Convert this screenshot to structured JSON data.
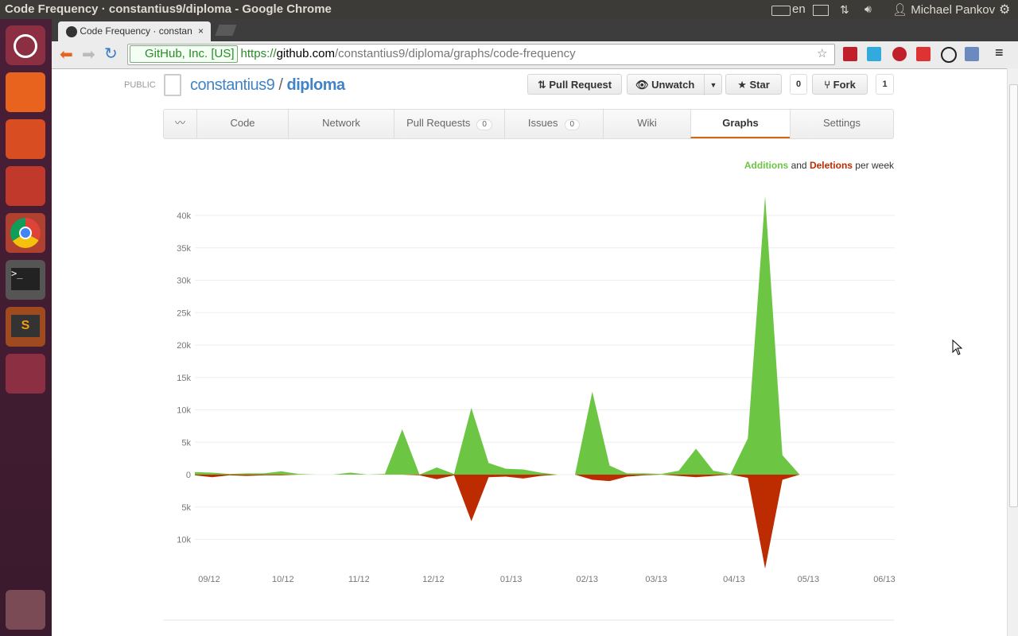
{
  "window_title": "Code Frequency · constantius9/diploma - Google Chrome",
  "topbar": {
    "language": "en",
    "user": "Michael Pankov"
  },
  "browser": {
    "tab_title": "Code Frequency · constan",
    "secure_label": "GitHub, Inc. [US]",
    "url_scheme": "https://",
    "url_host": "github.com",
    "url_path": "/constantius9/diploma/graphs/code-frequency"
  },
  "repo": {
    "visibility": "PUBLIC",
    "owner": "constantius9",
    "separator": "/",
    "name": "diploma",
    "buttons": {
      "pull_request": "Pull Request",
      "unwatch": "Unwatch",
      "star": "Star",
      "star_count": "0",
      "fork": "Fork",
      "fork_count": "1"
    }
  },
  "nav": [
    {
      "label": "Code"
    },
    {
      "label": "Network"
    },
    {
      "label": "Pull Requests",
      "count": "0"
    },
    {
      "label": "Issues",
      "count": "0"
    },
    {
      "label": "Wiki"
    },
    {
      "label": "Graphs"
    },
    {
      "label": "Settings"
    }
  ],
  "chart_data": {
    "type": "area",
    "legend_joiner": "and",
    "legend_suffix": "per week",
    "x": [
      0,
      1,
      2,
      3,
      4,
      5,
      6,
      7,
      8,
      9,
      10,
      11,
      12,
      13,
      14,
      15,
      16,
      17,
      18,
      19,
      20,
      21,
      22,
      23,
      24,
      25,
      26,
      27,
      28,
      29,
      30,
      31,
      32,
      33,
      34,
      35
    ],
    "xlim": [
      0,
      40.5
    ],
    "xticks": [
      {
        "value": 0.83,
        "label": "09/12"
      },
      {
        "value": 5.1,
        "label": "10/12"
      },
      {
        "value": 9.5,
        "label": "11/12"
      },
      {
        "value": 13.8,
        "label": "12/12"
      },
      {
        "value": 18.3,
        "label": "01/13"
      },
      {
        "value": 22.7,
        "label": "02/13"
      },
      {
        "value": 26.7,
        "label": "03/13"
      },
      {
        "value": 31.2,
        "label": "04/13"
      },
      {
        "value": 35.5,
        "label": "05/13"
      },
      {
        "value": 39.9,
        "label": "06/13"
      }
    ],
    "ylim": [
      -15000,
      45000
    ],
    "yticks": [
      {
        "value": 40000,
        "label": "40k"
      },
      {
        "value": 35000,
        "label": "35k"
      },
      {
        "value": 30000,
        "label": "30k"
      },
      {
        "value": 25000,
        "label": "25k"
      },
      {
        "value": 20000,
        "label": "20k"
      },
      {
        "value": 15000,
        "label": "15k"
      },
      {
        "value": 10000,
        "label": "10k"
      },
      {
        "value": 5000,
        "label": "5k"
      },
      0,
      {
        "value": -5000,
        "label": "5k"
      },
      {
        "value": -10000,
        "label": "10k"
      }
    ],
    "grid": true,
    "series": [
      {
        "name": "Additions",
        "color": "#6cc644",
        "values": [
          400,
          300,
          100,
          200,
          200,
          500,
          100,
          0,
          0,
          300,
          0,
          100,
          7000,
          0,
          1100,
          100,
          10300,
          1800,
          900,
          800,
          300,
          0,
          0,
          12800,
          1400,
          200,
          200,
          100,
          600,
          4000,
          600,
          100,
          5600,
          43000,
          3000,
          0
        ]
      },
      {
        "name": "Deletions",
        "color": "#bd2c00",
        "values": [
          -100,
          -400,
          -100,
          -200,
          -100,
          -100,
          0,
          0,
          0,
          0,
          0,
          0,
          0,
          -100,
          -700,
          -100,
          -7200,
          -400,
          -300,
          -600,
          -200,
          0,
          0,
          -800,
          -1000,
          -300,
          -100,
          0,
          -200,
          -400,
          -200,
          0,
          -500,
          -14500,
          -800,
          0
        ]
      }
    ]
  }
}
